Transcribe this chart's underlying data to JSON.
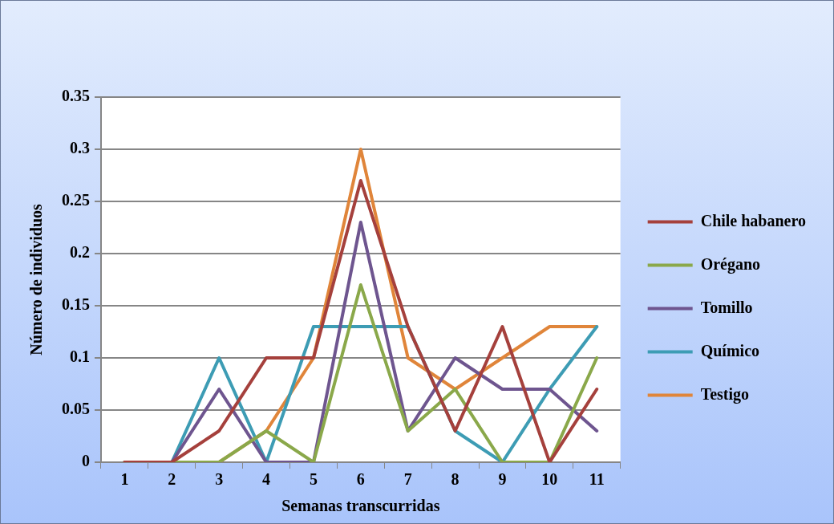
{
  "chart_data": {
    "type": "line",
    "xlabel": "Semanas transcurridas",
    "ylabel": "Número de individuos",
    "categories": [
      "1",
      "2",
      "3",
      "4",
      "5",
      "6",
      "7",
      "8",
      "9",
      "10",
      "11"
    ],
    "series": [
      {
        "name": "Chile habanero",
        "color": "#a5403c",
        "values": [
          0,
          0,
          0.03,
          0.1,
          0.1,
          0.27,
          0.13,
          0.03,
          0.13,
          0,
          0.07
        ]
      },
      {
        "name": "Orégano",
        "color": "#8aa84a",
        "values": [
          0,
          0,
          0,
          0.03,
          0,
          0.17,
          0.03,
          0.07,
          0,
          0,
          0.1
        ]
      },
      {
        "name": "Tomillo",
        "color": "#6e558f",
        "values": [
          0,
          0,
          0.07,
          0,
          0,
          0.23,
          0.03,
          0.1,
          0.07,
          0.07,
          0.03
        ]
      },
      {
        "name": "Químico",
        "color": "#3d9cb4",
        "values": [
          0,
          0,
          0.1,
          0,
          0.13,
          0.13,
          0.13,
          0.03,
          0,
          0.07,
          0.13
        ]
      },
      {
        "name": "Testigo",
        "color": "#e0853a",
        "values": [
          0,
          0,
          0,
          0.03,
          0.1,
          0.3,
          0.1,
          0.07,
          0.1,
          0.13,
          0.13
        ]
      }
    ],
    "ylim": [
      0,
      0.35
    ],
    "yticks": [
      0,
      0.05,
      0.1,
      0.15,
      0.2,
      0.25,
      0.3,
      0.35
    ],
    "grid": "y",
    "legend": "right",
    "marker": "none",
    "line_style": "solid"
  }
}
